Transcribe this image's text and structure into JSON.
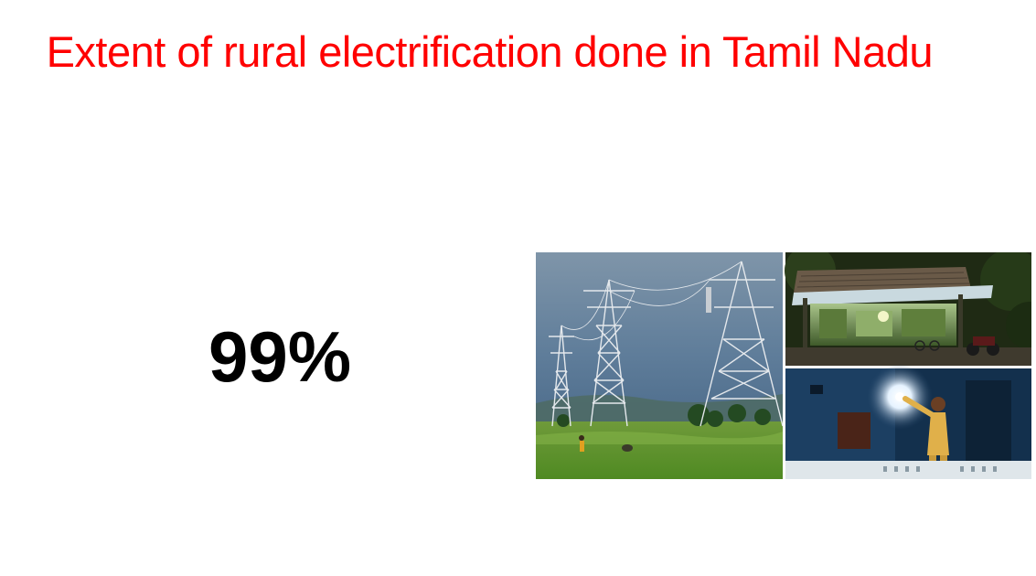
{
  "slide": {
    "title": " Extent of rural electrification done in Tamil Nadu",
    "stat": "99%"
  },
  "photos": [
    {
      "name": "transmission-towers-field-photo"
    },
    {
      "name": "lit-village-shop-photo"
    },
    {
      "name": "woman-switching-on-bulb-photo"
    }
  ],
  "colors": {
    "title": "#ff0000",
    "stat": "#000000",
    "background": "#ffffff"
  }
}
